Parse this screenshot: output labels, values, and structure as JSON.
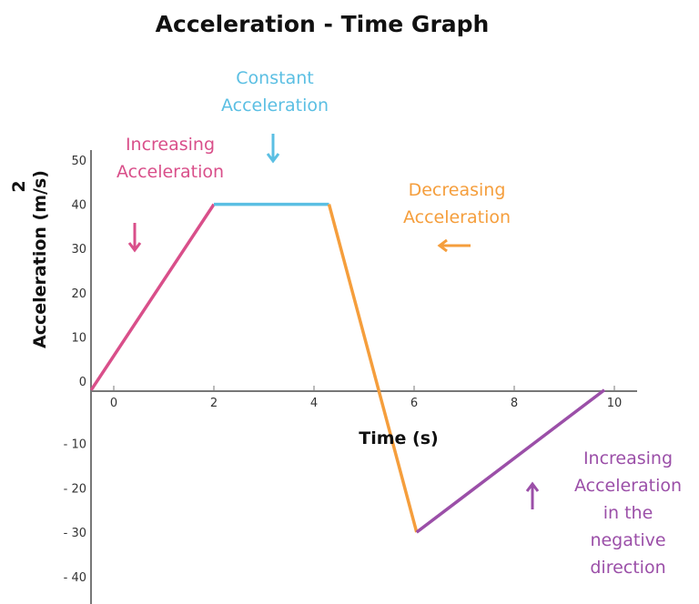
{
  "chart_data": {
    "type": "line",
    "title": "Acceleration - Time Graph",
    "xlabel": "Time (s)",
    "ylabel": "Acceleration (m/s)",
    "ylabel_superscript": "2",
    "xlim": [
      -0.45,
      10.5
    ],
    "ylim": [
      -45,
      52
    ],
    "x_ticks": [
      0,
      2,
      4,
      6,
      8,
      10
    ],
    "y_ticks_pos": [
      0,
      10,
      20,
      30,
      40,
      50
    ],
    "y_ticks_neg": [
      "- 10",
      "- 20",
      "- 30",
      "- 40"
    ],
    "grid": false,
    "series": [
      {
        "color": "#d94f8a",
        "x": [
          -0.45,
          2
        ],
        "y": [
          -2,
          40
        ]
      },
      {
        "color": "#5bbfe3",
        "x": [
          2,
          4.3
        ],
        "y": [
          40,
          40
        ]
      },
      {
        "color": "#f59e3c",
        "x": [
          4.3,
          6.05
        ],
        "y": [
          40,
          -30
        ]
      },
      {
        "color": "#9b4fa8",
        "x": [
          6.05,
          9.8
        ],
        "y": [
          -30,
          -2
        ]
      }
    ],
    "annotations": [
      {
        "lines": [
          "Increasing",
          "Acceleration"
        ],
        "color": "#d94f8a",
        "arrow": "down"
      },
      {
        "lines": [
          "Constant",
          "Acceleration"
        ],
        "color": "#5bbfe3",
        "arrow": "down"
      },
      {
        "lines": [
          "Decreasing",
          "Acceleration"
        ],
        "color": "#f59e3c",
        "arrow": "left"
      },
      {
        "lines": [
          "Increasing",
          "Acceleration",
          "in the",
          "negative",
          "direction"
        ],
        "color": "#9b4fa8",
        "arrow": "up"
      }
    ]
  }
}
